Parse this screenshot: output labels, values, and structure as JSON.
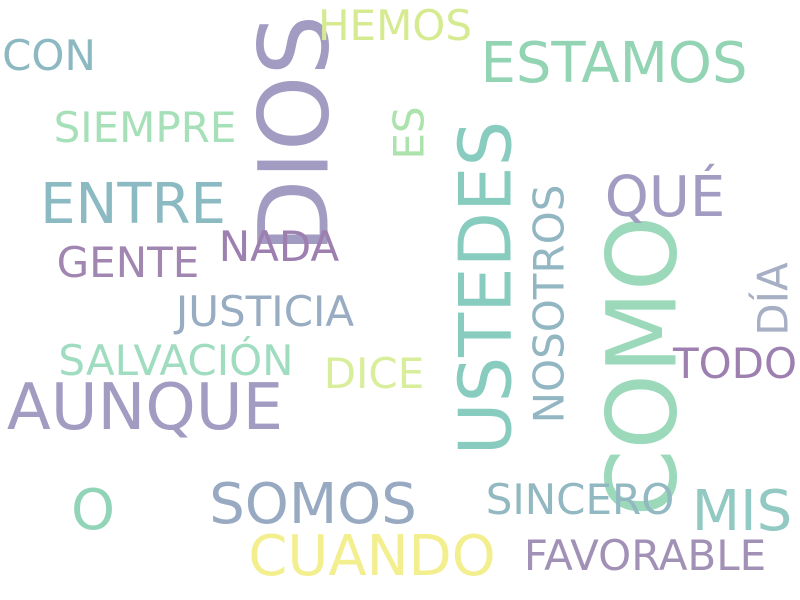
{
  "words": [
    {
      "text": "DIOS",
      "color": "#a29bc2",
      "orientation": "vertical"
    },
    {
      "text": "COMO",
      "color": "#9bd9ba",
      "orientation": "vertical"
    },
    {
      "text": "USTEDES",
      "color": "#88ccbf",
      "orientation": "vertical"
    },
    {
      "text": "AUNQUE",
      "color": "#a29bc2",
      "orientation": "horizontal"
    },
    {
      "text": "ESTAMOS",
      "color": "#92d4b3",
      "orientation": "horizontal"
    },
    {
      "text": "ENTRE",
      "color": "#8cbac2",
      "orientation": "horizontal"
    },
    {
      "text": "CUANDO",
      "color": "#f3ef8e",
      "orientation": "horizontal"
    },
    {
      "text": "SOMOS",
      "color": "#98a9c2",
      "orientation": "horizontal"
    },
    {
      "text": "QUÉ",
      "color": "#a29bc2",
      "orientation": "horizontal"
    },
    {
      "text": "MIS",
      "color": "#92c9c2",
      "orientation": "horizontal"
    },
    {
      "text": "O",
      "color": "#92d4b8",
      "orientation": "horizontal"
    },
    {
      "text": "NOSOTROS",
      "color": "#92b6c2",
      "orientation": "vertical"
    },
    {
      "text": "CON",
      "color": "#8cb8c2",
      "orientation": "horizontal"
    },
    {
      "text": "SIEMPRE",
      "color": "#a6e0b8",
      "orientation": "horizontal"
    },
    {
      "text": "HEMOS",
      "color": "#d6eb91",
      "orientation": "horizontal"
    },
    {
      "text": "ES",
      "color": "#ace2ac",
      "orientation": "vertical"
    },
    {
      "text": "NADA",
      "color": "#9d7fb0",
      "orientation": "horizontal"
    },
    {
      "text": "GENTE",
      "color": "#a086b0",
      "orientation": "horizontal"
    },
    {
      "text": "JUSTICIA",
      "color": "#98acc2",
      "orientation": "horizontal"
    },
    {
      "text": "SALVACIÓN",
      "color": "#a0dcc0",
      "orientation": "horizontal"
    },
    {
      "text": "DICE",
      "color": "#d9ee9a",
      "orientation": "horizontal"
    },
    {
      "text": "SINCERO",
      "color": "#92b8c2",
      "orientation": "horizontal"
    },
    {
      "text": "FAVORABLE",
      "color": "#a291b6",
      "orientation": "horizontal"
    },
    {
      "text": "TODO",
      "color": "#9d80b0",
      "orientation": "horizontal"
    },
    {
      "text": "DÍA",
      "color": "#a6afc4",
      "orientation": "vertical"
    }
  ]
}
